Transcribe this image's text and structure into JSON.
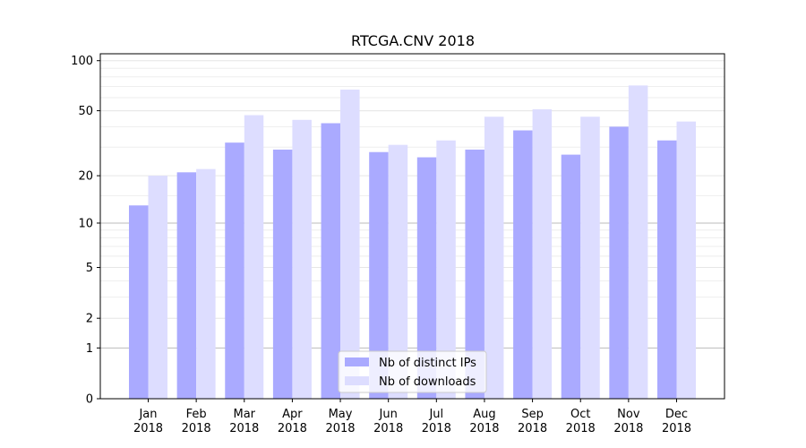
{
  "chart_data": {
    "type": "bar",
    "title": "RTCGA.CNV 2018",
    "xlabel": "",
    "ylabel": "",
    "yscale": "log(1+y)",
    "ylim": [
      0,
      110
    ],
    "yticks": [
      0,
      1,
      2,
      5,
      10,
      20,
      50,
      100
    ],
    "categories": [
      "Jan\n2018",
      "Feb\n2018",
      "Mar\n2018",
      "Apr\n2018",
      "May\n2018",
      "Jun\n2018",
      "Jul\n2018",
      "Aug\n2018",
      "Sep\n2018",
      "Oct\n2018",
      "Nov\n2018",
      "Dec\n2018"
    ],
    "series": [
      {
        "name": "Nb of distinct IPs",
        "color": "#aaaaff",
        "values": [
          13,
          21,
          32,
          29,
          42,
          28,
          26,
          29,
          38,
          27,
          40,
          33
        ]
      },
      {
        "name": "Nb of downloads",
        "color": "#ddddff",
        "values": [
          20,
          22,
          47,
          44,
          67,
          31,
          33,
          46,
          51,
          46,
          71,
          43
        ]
      }
    ],
    "legend": "lower-center",
    "grid": "y"
  }
}
